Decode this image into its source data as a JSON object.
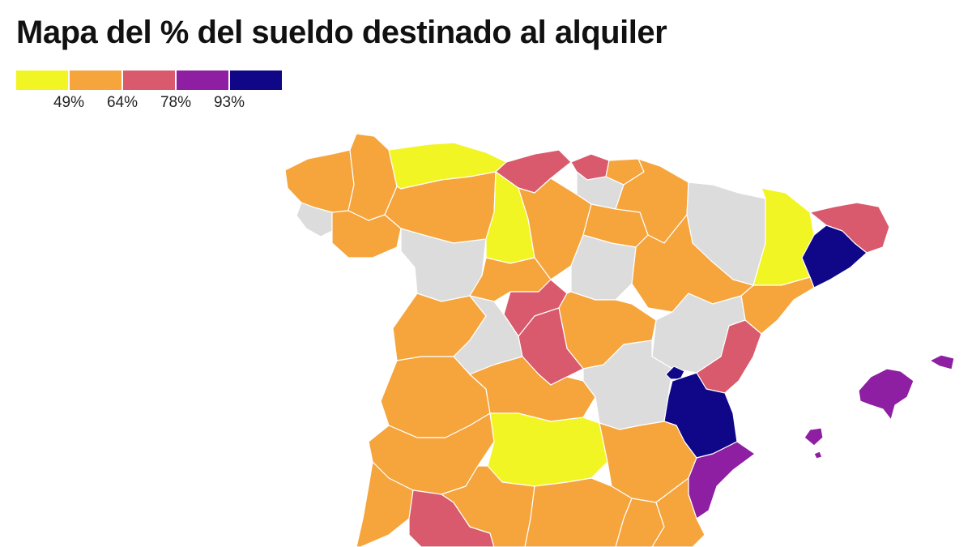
{
  "title": "Mapa del % del sueldo destinado al alquiler",
  "colors": {
    "level1": "#f2f524",
    "level2": "#f6a43c",
    "level3": "#d85a6c",
    "level4": "#8e1ea2",
    "level5": "#0f0787",
    "no_data": "#dcdcdc",
    "border": "#ffffff"
  },
  "legend": {
    "colors": [
      "#f2f524",
      "#f6a43c",
      "#d85a6c",
      "#8e1ea2",
      "#0f0787"
    ],
    "breaks": [
      "49%",
      "64%",
      "78%",
      "93%"
    ]
  }
}
